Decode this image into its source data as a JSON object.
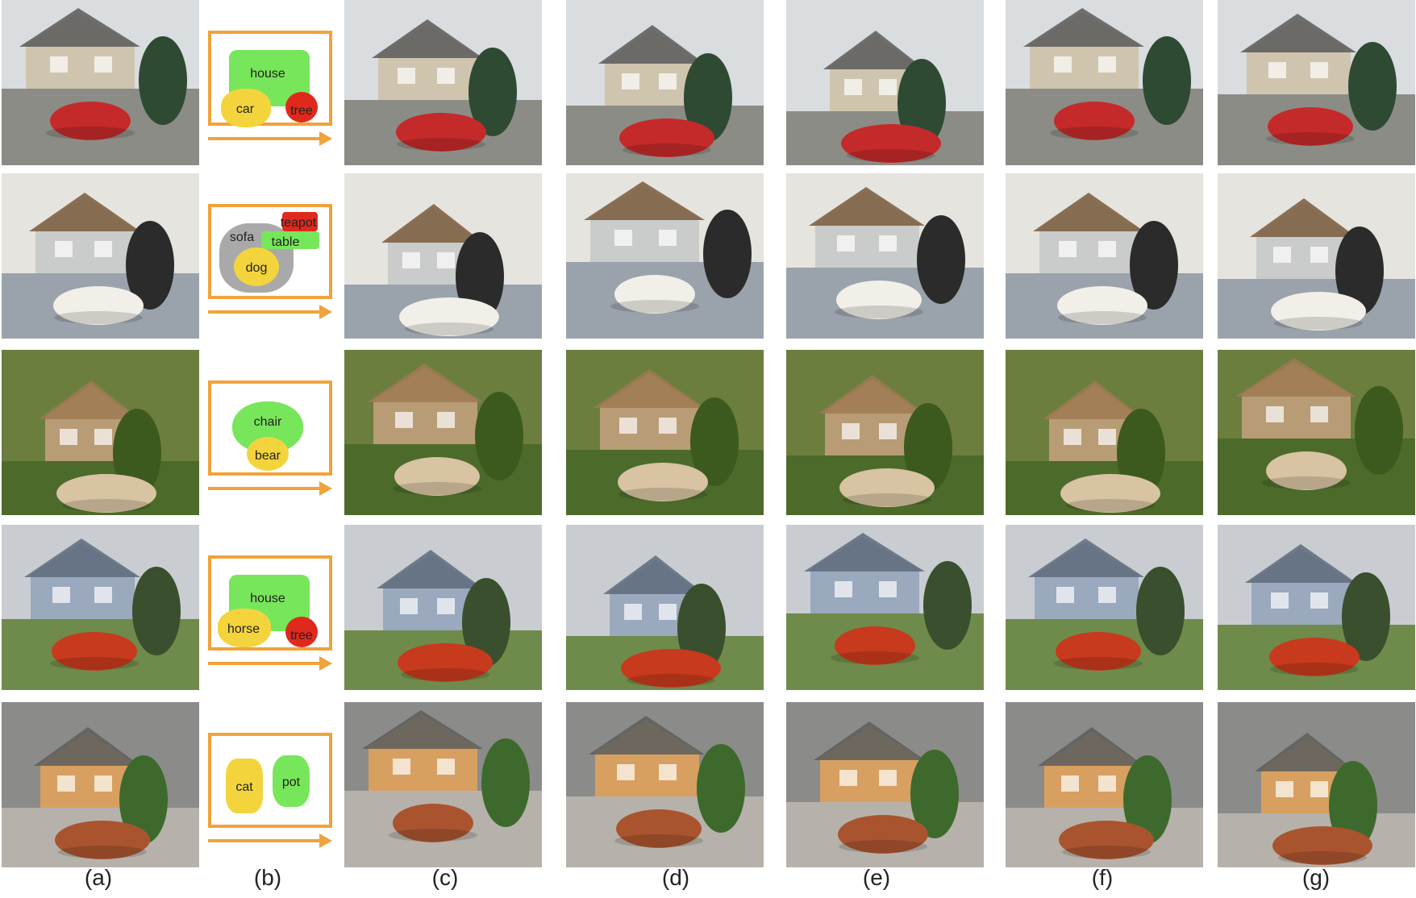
{
  "columns": [
    "(a)",
    "(b)",
    "(c)",
    "(d)",
    "(e)",
    "(f)",
    "(g)"
  ],
  "colors": {
    "frame": "#f0a33a",
    "mask_green": "#77e65a",
    "mask_yellow": "#f4d43c",
    "mask_red": "#e0291c",
    "mask_gray": "#a9a9a9"
  },
  "rows": [
    {
      "layout_labels": [
        "house",
        "car",
        "tree"
      ]
    },
    {
      "layout_labels": [
        "sofa",
        "table",
        "teapot",
        "dog"
      ]
    },
    {
      "layout_labels": [
        "chair",
        "bear"
      ]
    },
    {
      "layout_labels": [
        "house",
        "horse",
        "tree"
      ]
    },
    {
      "layout_labels": [
        "cat",
        "pot"
      ]
    }
  ]
}
